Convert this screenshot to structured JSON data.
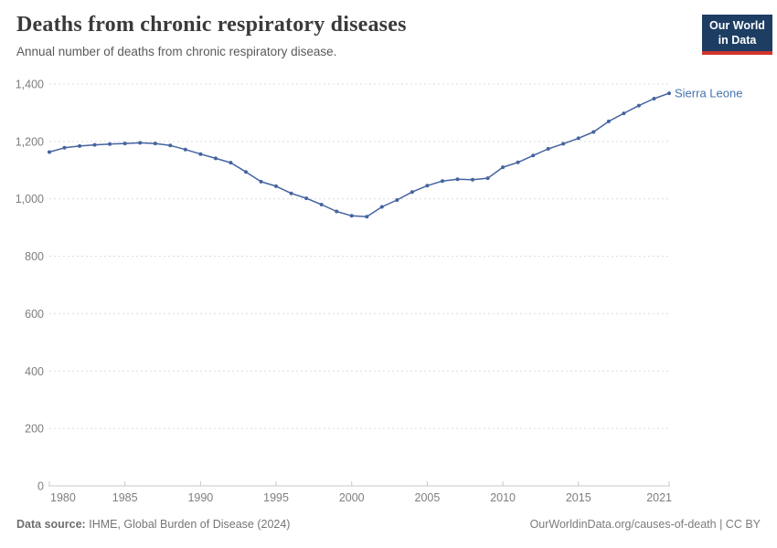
{
  "header": {
    "title": "Deaths from chronic respiratory diseases",
    "subtitle": "Annual number of deaths from chronic respiratory disease.",
    "logo": {
      "line1": "Our World",
      "line2": "in Data"
    }
  },
  "chart_data": {
    "type": "line",
    "title": "Deaths from chronic respiratory diseases",
    "subtitle": "Annual number of deaths from chronic respiratory disease.",
    "x": [
      1980,
      1981,
      1982,
      1983,
      1984,
      1985,
      1986,
      1987,
      1988,
      1989,
      1990,
      1991,
      1992,
      1993,
      1994,
      1995,
      1996,
      1997,
      1998,
      1999,
      2000,
      2001,
      2002,
      2003,
      2004,
      2005,
      2006,
      2007,
      2008,
      2009,
      2010,
      2011,
      2012,
      2013,
      2014,
      2015,
      2016,
      2017,
      2018,
      2019,
      2020,
      2021
    ],
    "series": [
      {
        "name": "Sierra Leone",
        "values": [
          1163,
          1178,
          1184,
          1188,
          1191,
          1193,
          1195,
          1193,
          1186,
          1172,
          1156,
          1141,
          1126,
          1094,
          1060,
          1044,
          1019,
          1002,
          980,
          956,
          941,
          938,
          972,
          996,
          1024,
          1046,
          1062,
          1068,
          1067,
          1072,
          1110,
          1127,
          1151,
          1174,
          1192,
          1211,
          1233,
          1270,
          1298,
          1325,
          1349,
          1368
        ]
      }
    ],
    "xlabel": "",
    "ylabel": "",
    "ylim": [
      0,
      1400
    ],
    "yticks": [
      0,
      200,
      400,
      600,
      800,
      1000,
      1200,
      1400
    ],
    "xticks": [
      1980,
      1985,
      1990,
      1995,
      2000,
      2005,
      2010,
      2015,
      2021
    ],
    "grid": "horizontal-dashed",
    "legend": "line-end-label"
  },
  "footer": {
    "source_label": "Data source:",
    "source_text": "IHME, Global Burden of Disease (2024)",
    "link_text": "OurWorldinData.org/causes-of-death | CC BY"
  },
  "colors": {
    "line": "#44639f",
    "entity_label": "#4574ad",
    "grid": "#dcdcdc",
    "axis_line": "#c8c8c8",
    "axis_text": "#7e7e7e",
    "logo_bg": "#1d3d63",
    "logo_red": "#d0342c"
  }
}
